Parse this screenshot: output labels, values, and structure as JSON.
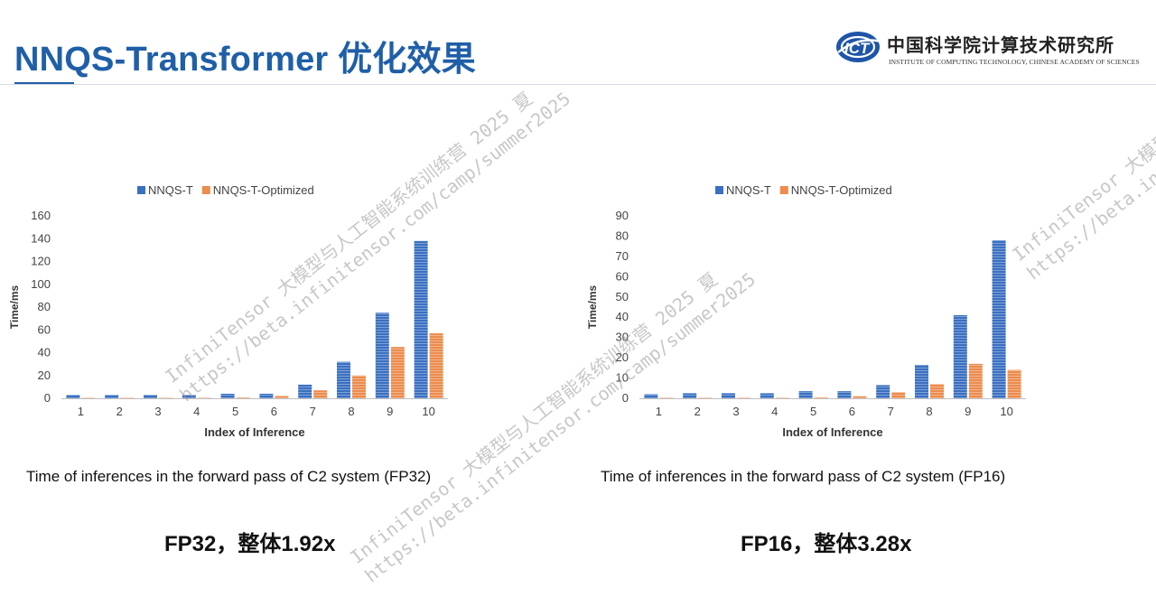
{
  "slide": {
    "title": "NNQS-Transformer 优化效果",
    "logo": {
      "icon_name": "ict-logo-icon",
      "cn_text": "中国科学院计算技术研究所",
      "en_text": "INSTITUTE OF COMPUTING TECHNOLOGY, CHINESE ACADEMY OF SCIENCES"
    },
    "captions": {
      "left": "Time of inferences in the forward pass of C2 system (FP32)",
      "right": "Time of inferences in the forward pass of C2 system (FP16)"
    },
    "summaries": {
      "left": "FP32，整体1.92x",
      "right": "FP16，整体3.28x"
    },
    "watermark": {
      "line1": "InfiniTensor 大模型与人工智能系统训练营 2025 夏",
      "line2": "https://beta.infinitensor.com/camp/summer2025"
    }
  },
  "chart_data": [
    {
      "type": "bar",
      "categories": [
        "1",
        "2",
        "3",
        "4",
        "5",
        "6",
        "7",
        "8",
        "9",
        "10"
      ],
      "series": [
        {
          "name": "NNQS-T",
          "color": "#3a70c2",
          "values": [
            3,
            3,
            3,
            3,
            4,
            4,
            12,
            32,
            75,
            138
          ]
        },
        {
          "name": "NNQS-T-Optimized",
          "color": "#ec8c4d",
          "values": [
            0.5,
            0.5,
            0.5,
            0.5,
            0.8,
            2,
            7,
            20,
            45,
            57
          ]
        }
      ],
      "xlabel": "Index of Inference",
      "ylabel": "Time/ms",
      "ylim": [
        0,
        160
      ],
      "yticks": [
        0,
        20,
        40,
        60,
        80,
        100,
        120,
        140,
        160
      ],
      "grid": false,
      "legend": "top"
    },
    {
      "type": "bar",
      "categories": [
        "1",
        "2",
        "3",
        "4",
        "5",
        "6",
        "7",
        "8",
        "9",
        "10"
      ],
      "series": [
        {
          "name": "NNQS-T",
          "color": "#3a70c2",
          "values": [
            2,
            2.5,
            2.5,
            2.5,
            3.5,
            3.5,
            6.5,
            16.5,
            41,
            78
          ]
        },
        {
          "name": "NNQS-T-Optimized",
          "color": "#ec8c4d",
          "values": [
            0.3,
            0.3,
            0.3,
            0.3,
            0.5,
            1,
            3,
            7,
            17,
            14
          ]
        }
      ],
      "xlabel": "Index of Inference",
      "ylabel": "Time/ms",
      "ylim": [
        0,
        90
      ],
      "yticks": [
        0,
        10,
        20,
        30,
        40,
        50,
        60,
        70,
        80,
        90
      ],
      "grid": false,
      "legend": "top"
    }
  ]
}
